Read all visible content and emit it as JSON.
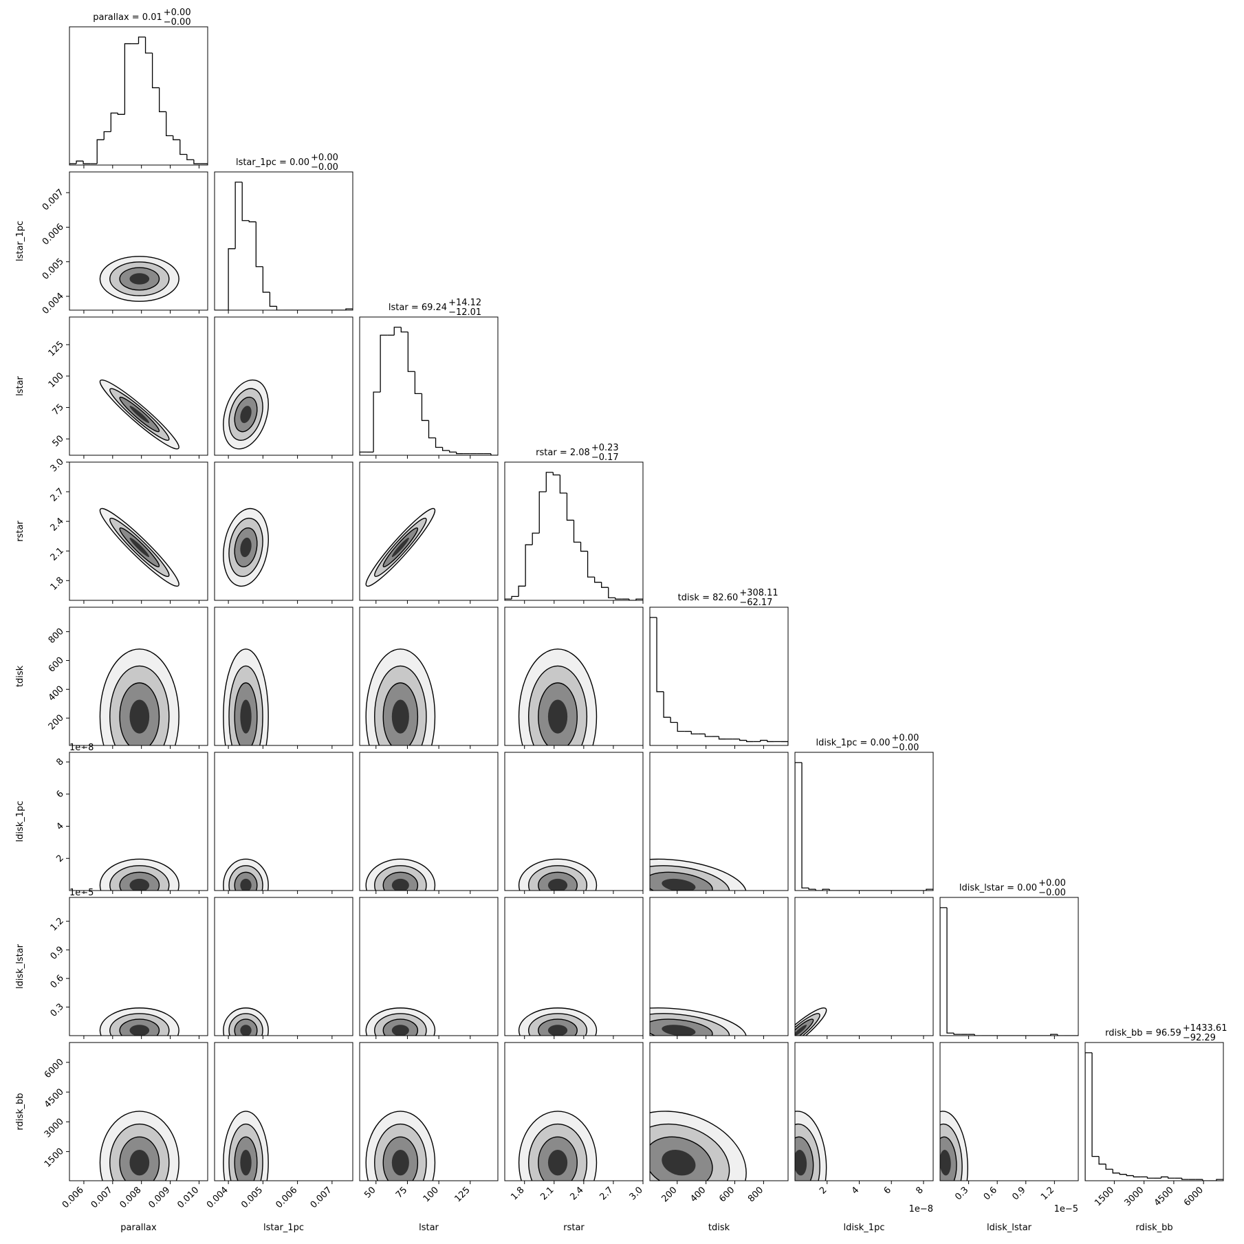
{
  "chart_data": {
    "type": "corner",
    "variables": [
      {
        "name": "parallax",
        "title": "parallax = 0.01",
        "title_sup": "+0.00",
        "title_sub": "−0.00",
        "xlim": [
          0.0055,
          0.0103
        ],
        "xticks": [
          0.006,
          0.007,
          0.008,
          0.009,
          {
            "value": 0.01,
            "label": "0.010"
          }
        ],
        "bins": [
          0.0055,
          0.00574,
          0.00598,
          0.00622,
          0.00646,
          0.0067,
          0.00694,
          0.00718,
          0.00742,
          0.00766,
          0.0079,
          0.00814,
          0.00838,
          0.00862,
          0.00886,
          0.0091,
          0.00934,
          0.00958,
          0.00982,
          0.01006,
          0.0103
        ],
        "counts": [
          1,
          3,
          1,
          1,
          19,
          25,
          39,
          38,
          91,
          91,
          96,
          84,
          58,
          40,
          22,
          19,
          8,
          4,
          1,
          1
        ]
      },
      {
        "name": "lstar_1pc",
        "title": "lstar_1pc = 0.00",
        "title_sup": "+0.00",
        "title_sub": "−0.00",
        "xlim": [
          0.0036,
          0.0076
        ],
        "xticks": [
          0.004,
          0.005,
          0.006,
          0.007
        ],
        "bins": [
          0.0036,
          0.0038,
          0.004,
          0.0042,
          0.0044,
          0.0046,
          0.0048,
          0.005,
          0.0052,
          0.0054,
          0.0056,
          0.0058,
          0.006,
          0.0062,
          0.0064,
          0.0066,
          0.0068,
          0.007,
          0.0072,
          0.0074,
          0.0076
        ],
        "counts": [
          0,
          0,
          48,
          100,
          70,
          69,
          34,
          14,
          3,
          0,
          0,
          0,
          0,
          0,
          0,
          0,
          0,
          0,
          0,
          1
        ]
      },
      {
        "name": "lstar",
        "title": "lstar = 69.24",
        "title_sup": "+14.12",
        "title_sub": "−12.01",
        "xlim": [
          37,
          147
        ],
        "xticks": [
          50,
          75,
          100,
          125
        ],
        "bins": [
          37,
          42.5,
          48,
          53.5,
          59,
          64.5,
          70,
          75.5,
          81,
          86.5,
          92,
          97.5,
          103,
          108.5,
          114,
          119.5,
          125,
          130.5,
          136,
          141.5,
          147
        ],
        "counts": [
          2,
          2,
          40,
          76,
          76,
          81,
          78,
          53,
          39,
          22,
          11,
          5,
          3,
          2,
          1,
          1,
          1,
          1,
          1,
          0
        ]
      },
      {
        "name": "rstar",
        "title": "rstar = 2.08",
        "title_sup": "+0.23",
        "title_sub": "−0.17",
        "xlim": [
          1.6,
          3.0
        ],
        "xticks": [
          1.8,
          2.1,
          2.4,
          2.7,
          {
            "value": 3.0,
            "label": "3.0"
          }
        ],
        "bins": [
          1.6,
          1.67,
          1.74,
          1.81,
          1.88,
          1.95,
          2.02,
          2.09,
          2.16,
          2.23,
          2.3,
          2.37,
          2.44,
          2.51,
          2.58,
          2.65,
          2.72,
          2.79,
          2.86,
          2.93,
          3.0
        ],
        "counts": [
          1,
          3,
          11,
          43,
          52,
          84,
          99,
          97,
          83,
          62,
          45,
          38,
          18,
          14,
          10,
          2,
          1,
          1,
          0,
          1
        ]
      },
      {
        "name": "tdisk",
        "title": "tdisk = 82.60",
        "title_sup": "+308.11",
        "title_sub": "−62.17",
        "xlim": [
          10,
          970
        ],
        "xticks": [
          200,
          400,
          600,
          800
        ],
        "bins": [
          10,
          58,
          106,
          154,
          202,
          250,
          298,
          346,
          394,
          442,
          490,
          538,
          586,
          634,
          682,
          730,
          778,
          826,
          874,
          922,
          970
        ],
        "counts": [
          100,
          42,
          22,
          18,
          11,
          11,
          9,
          9,
          7,
          7,
          5,
          5,
          5,
          4,
          3,
          3,
          4,
          3,
          3,
          3
        ]
      },
      {
        "name": "ldisk_1pc",
        "title": "ldisk_1pc = 0.00",
        "title_sup": "+0.00",
        "title_sub": "−0.00",
        "offset_label": "1e−8",
        "xlim": [
          0,
          8.6e-08
        ],
        "xticks": [
          {
            "value": 2e-08,
            "label": "2"
          },
          {
            "value": 4e-08,
            "label": "4"
          },
          {
            "value": 6e-08,
            "label": "6"
          },
          {
            "value": 8e-08,
            "label": "8"
          }
        ],
        "bins": [
          0,
          4.3e-09,
          8.6e-09,
          1.29e-08,
          1.72e-08,
          2.15e-08,
          2.58e-08,
          3.01e-08,
          3.44e-08,
          3.87e-08,
          4.3e-08,
          4.73e-08,
          5.16e-08,
          5.59e-08,
          6.02e-08,
          6.45e-08,
          6.88e-08,
          7.31e-08,
          7.74e-08,
          8.17e-08,
          8.6e-08
        ],
        "counts": [
          100,
          2,
          1,
          0,
          1,
          0,
          0,
          0,
          0,
          0,
          0,
          0,
          0,
          0,
          0,
          0,
          0,
          0,
          0,
          1
        ]
      },
      {
        "name": "ldisk_lstar",
        "title": "ldisk_lstar = 0.00",
        "title_sup": "+0.00",
        "title_sub": "−0.00",
        "offset_label": "1e−5",
        "xlim": [
          0,
          1.45e-05
        ],
        "xticks": [
          {
            "value": 3e-06,
            "label": "0.3"
          },
          {
            "value": 6e-06,
            "label": "0.6"
          },
          {
            "value": 9e-06,
            "label": "0.9"
          },
          {
            "value": 1.2e-05,
            "label": "1.2"
          }
        ],
        "bins": [
          0,
          7.25e-07,
          1.45e-06,
          2.175e-06,
          2.9e-06,
          3.625e-06,
          4.35e-06,
          5.075e-06,
          5.8e-06,
          6.525e-06,
          7.25e-06,
          7.975e-06,
          8.7e-06,
          9.425e-06,
          1.015e-05,
          1.0875e-05,
          1.16e-05,
          1.2325e-05,
          1.305e-05,
          1.3775e-05,
          1.45e-05
        ],
        "counts": [
          100,
          2,
          1,
          1,
          1,
          0,
          0,
          0,
          0,
          0,
          0,
          0,
          0,
          0,
          0,
          0,
          1,
          0,
          0,
          0
        ]
      },
      {
        "name": "rdisk_bb",
        "title": "rdisk_bb = 96.59",
        "title_sup": "+1433.61",
        "title_sub": "−92.29",
        "xlim": [
          30,
          7000
        ],
        "xticks": [
          1500,
          3000,
          4500,
          6000
        ],
        "bins": [
          30,
          378.5,
          727,
          1075.5,
          1424,
          1772.5,
          2121,
          2469.5,
          2818,
          3166.5,
          3515,
          3863.5,
          4212,
          4560.5,
          4909,
          5257.5,
          5606,
          5954.5,
          6303,
          6651.5,
          7000
        ],
        "counts": [
          100,
          19,
          13,
          9,
          6,
          5,
          4,
          3,
          3,
          2,
          2,
          3,
          2,
          2,
          1,
          1,
          1,
          0,
          0,
          1
        ]
      }
    ],
    "correlations": [
      [],
      [
        0
      ],
      [
        -0.95,
        0.3
      ],
      [
        -0.95,
        0.2,
        0.95
      ],
      [
        0,
        0,
        0,
        0
      ],
      [
        0,
        0,
        0,
        0,
        -0.3
      ],
      [
        0,
        0,
        0,
        0,
        -0.3,
        0.9
      ],
      [
        0,
        0,
        0,
        0,
        -0.2,
        -0.1,
        -0.1
      ]
    ]
  }
}
